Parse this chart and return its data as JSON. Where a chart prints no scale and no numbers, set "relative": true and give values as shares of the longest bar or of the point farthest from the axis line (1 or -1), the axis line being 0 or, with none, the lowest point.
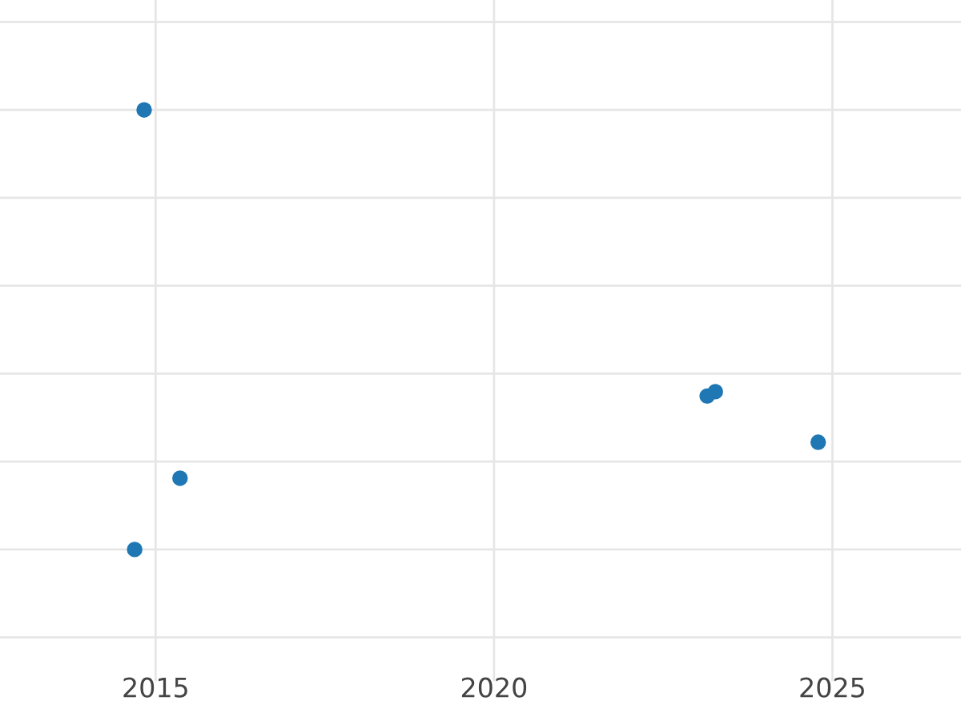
{
  "chart_data": {
    "type": "scatter",
    "x": [
      2014.83,
      2014.69,
      2015.36,
      2023.15,
      2023.27,
      2024.79
    ],
    "values": [
      1,
      0,
      0.162,
      0.349,
      0.359,
      0.244
    ],
    "color": "#1f77b4",
    "relative": true,
    "xlim": [
      2012.7,
      2026.9
    ],
    "xticks": [
      2015,
      2020,
      2025
    ],
    "tick_labels": "x",
    "grid": true,
    "marker": "circle"
  }
}
